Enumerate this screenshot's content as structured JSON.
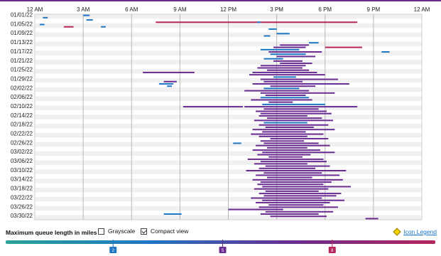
{
  "chart_data": {
    "type": "heatmap",
    "x_axis": {
      "tick_labels": [
        "12 AM",
        "3 AM",
        "6 AM",
        "9 AM",
        "12 PM",
        "3 PM",
        "6 PM",
        "9 PM",
        "12 AM"
      ],
      "range_hours": [
        0,
        24
      ]
    },
    "y_axis": {
      "dates": [
        "01/01/22",
        "01/05/22",
        "01/09/22",
        "01/13/22",
        "01/17/22",
        "01/21/22",
        "01/25/22",
        "01/29/22",
        "02/02/22",
        "02/06/22",
        "02/10/22",
        "02/14/22",
        "02/18/22",
        "02/22/22",
        "02/26/22",
        "03/02/22",
        "03/06/22",
        "03/10/22",
        "03/14/22",
        "03/18/22",
        "03/22/22",
        "03/26/22",
        "03/30/22"
      ],
      "range": [
        "01/01/22",
        "03/31/22"
      ]
    },
    "grid": true,
    "scale": {
      "tick_values": [
        "2",
        "5",
        "8"
      ],
      "colors": [
        "#2aa198",
        "#1f77c4",
        "#6a2c91",
        "#b5255c"
      ]
    },
    "bars": [
      {
        "date": "01/01/22",
        "start": 3.0,
        "end": 3.4,
        "level": 1
      },
      {
        "date": "01/02/22",
        "start": 0.5,
        "end": 0.8,
        "level": 1
      },
      {
        "date": "01/03/22",
        "start": 3.2,
        "end": 3.6,
        "level": 1
      },
      {
        "date": "01/04/22",
        "start": 7.5,
        "end": 20.0,
        "level": 3
      },
      {
        "date": "01/04/22",
        "start": 13.8,
        "end": 14.0,
        "level": 1
      },
      {
        "date": "01/05/22",
        "start": 0.3,
        "end": 0.6,
        "level": 1
      },
      {
        "date": "01/06/22",
        "start": 1.8,
        "end": 2.4,
        "level": 3
      },
      {
        "date": "01/06/22",
        "start": 4.1,
        "end": 4.4,
        "level": 1
      },
      {
        "date": "01/07/22",
        "start": 14.5,
        "end": 15.0,
        "level": 1
      },
      {
        "date": "01/09/22",
        "start": 15.0,
        "end": 15.8,
        "level": 1
      },
      {
        "date": "01/10/22",
        "start": 14.2,
        "end": 14.6,
        "level": 1
      },
      {
        "date": "01/13/22",
        "start": 17.0,
        "end": 17.6,
        "level": 1
      },
      {
        "date": "01/14/22",
        "start": 15.2,
        "end": 17.0,
        "level": 2
      },
      {
        "date": "01/15/22",
        "start": 18.0,
        "end": 20.3,
        "level": 3
      },
      {
        "date": "01/15/22",
        "start": 14.8,
        "end": 16.8,
        "level": 2
      },
      {
        "date": "01/16/22",
        "start": 14.0,
        "end": 16.4,
        "level": 1
      },
      {
        "date": "01/17/22",
        "start": 14.5,
        "end": 17.8,
        "level": 2
      },
      {
        "date": "01/17/22",
        "start": 21.5,
        "end": 22.0,
        "level": 1
      },
      {
        "date": "01/18/22",
        "start": 14.6,
        "end": 16.8,
        "level": 1
      },
      {
        "date": "01/19/22",
        "start": 15.0,
        "end": 17.4,
        "level": 2
      },
      {
        "date": "01/20/22",
        "start": 14.2,
        "end": 15.4,
        "level": 1
      },
      {
        "date": "01/21/22",
        "start": 14.8,
        "end": 16.6,
        "level": 2
      },
      {
        "date": "01/22/22",
        "start": 15.2,
        "end": 17.2,
        "level": 2
      },
      {
        "date": "01/23/22",
        "start": 14.0,
        "end": 16.8,
        "level": 2
      },
      {
        "date": "01/24/22",
        "start": 13.8,
        "end": 16.6,
        "level": 2
      },
      {
        "date": "01/25/22",
        "start": 14.4,
        "end": 17.0,
        "level": 2
      },
      {
        "date": "01/26/22",
        "start": 6.7,
        "end": 9.9,
        "level": 2
      },
      {
        "date": "01/26/22",
        "start": 13.5,
        "end": 17.5,
        "level": 2
      },
      {
        "date": "01/27/22",
        "start": 13.3,
        "end": 18.0,
        "level": 2
      },
      {
        "date": "01/28/22",
        "start": 14.8,
        "end": 16.2,
        "level": 1
      },
      {
        "date": "01/29/22",
        "start": 14.0,
        "end": 18.8,
        "level": 2
      },
      {
        "date": "01/30/22",
        "start": 8.0,
        "end": 8.8,
        "level": 2
      },
      {
        "date": "01/30/22",
        "start": 14.2,
        "end": 16.6,
        "level": 2
      },
      {
        "date": "01/31/22",
        "start": 7.7,
        "end": 8.6,
        "level": 1
      },
      {
        "date": "01/31/22",
        "start": 13.5,
        "end": 19.5,
        "level": 2
      },
      {
        "date": "02/01/22",
        "start": 8.2,
        "end": 8.5,
        "level": 1
      },
      {
        "date": "02/01/22",
        "start": 14.6,
        "end": 17.4,
        "level": 2
      },
      {
        "date": "02/02/22",
        "start": 14.2,
        "end": 16.4,
        "level": 1
      },
      {
        "date": "02/03/22",
        "start": 13.0,
        "end": 17.0,
        "level": 2
      },
      {
        "date": "02/04/22",
        "start": 14.0,
        "end": 18.6,
        "level": 2
      },
      {
        "date": "02/05/22",
        "start": 14.3,
        "end": 16.8,
        "level": 2
      },
      {
        "date": "02/06/22",
        "start": 14.0,
        "end": 17.0,
        "level": 1
      },
      {
        "date": "02/07/22",
        "start": 13.4,
        "end": 17.2,
        "level": 2
      },
      {
        "date": "02/08/22",
        "start": 14.5,
        "end": 16.0,
        "level": 2
      },
      {
        "date": "02/09/22",
        "start": 14.1,
        "end": 18.0,
        "level": 1
      },
      {
        "date": "02/10/22",
        "start": 9.2,
        "end": 12.9,
        "level": 2
      },
      {
        "date": "02/10/22",
        "start": 13.0,
        "end": 20.0,
        "level": 2
      },
      {
        "date": "02/11/22",
        "start": 14.2,
        "end": 17.6,
        "level": 2
      },
      {
        "date": "02/12/22",
        "start": 13.7,
        "end": 18.1,
        "level": 2
      },
      {
        "date": "02/13/22",
        "start": 14.0,
        "end": 18.4,
        "level": 2
      },
      {
        "date": "02/14/22",
        "start": 13.9,
        "end": 16.9,
        "level": 2
      },
      {
        "date": "02/15/22",
        "start": 14.4,
        "end": 17.8,
        "level": 2
      },
      {
        "date": "02/16/22",
        "start": 13.6,
        "end": 18.5,
        "level": 2
      },
      {
        "date": "02/17/22",
        "start": 14.2,
        "end": 16.9,
        "level": 1
      },
      {
        "date": "02/18/22",
        "start": 13.9,
        "end": 18.2,
        "level": 2
      },
      {
        "date": "02/19/22",
        "start": 14.3,
        "end": 17.3,
        "level": 2
      },
      {
        "date": "02/20/22",
        "start": 13.5,
        "end": 18.6,
        "level": 2
      },
      {
        "date": "02/21/22",
        "start": 14.1,
        "end": 16.8,
        "level": 2
      },
      {
        "date": "02/22/22",
        "start": 13.4,
        "end": 17.9,
        "level": 2
      },
      {
        "date": "02/23/22",
        "start": 13.9,
        "end": 16.9,
        "level": 2
      },
      {
        "date": "02/24/22",
        "start": 14.6,
        "end": 18.2,
        "level": 2
      },
      {
        "date": "02/25/22",
        "start": 14.0,
        "end": 16.7,
        "level": 2
      },
      {
        "date": "02/26/22",
        "start": 12.3,
        "end": 12.8,
        "level": 1
      },
      {
        "date": "02/26/22",
        "start": 14.2,
        "end": 17.6,
        "level": 2
      },
      {
        "date": "02/27/22",
        "start": 13.7,
        "end": 18.3,
        "level": 2
      },
      {
        "date": "02/28/22",
        "start": 14.4,
        "end": 16.9,
        "level": 2
      },
      {
        "date": "03/01/22",
        "start": 13.5,
        "end": 17.7,
        "level": 2
      },
      {
        "date": "03/02/22",
        "start": 14.1,
        "end": 18.6,
        "level": 2
      },
      {
        "date": "03/03/22",
        "start": 13.8,
        "end": 17.1,
        "level": 2
      },
      {
        "date": "03/04/22",
        "start": 14.5,
        "end": 16.6,
        "level": 2
      },
      {
        "date": "03/05/22",
        "start": 13.2,
        "end": 17.9,
        "level": 2
      },
      {
        "date": "03/06/22",
        "start": 14.0,
        "end": 18.1,
        "level": 2
      },
      {
        "date": "03/07/22",
        "start": 13.6,
        "end": 16.9,
        "level": 2
      },
      {
        "date": "03/08/22",
        "start": 14.3,
        "end": 18.3,
        "level": 2
      },
      {
        "date": "03/09/22",
        "start": 13.9,
        "end": 17.4,
        "level": 2
      },
      {
        "date": "03/10/22",
        "start": 13.1,
        "end": 19.3,
        "level": 2
      },
      {
        "date": "03/11/22",
        "start": 14.2,
        "end": 17.8,
        "level": 2
      },
      {
        "date": "03/12/22",
        "start": 13.7,
        "end": 18.9,
        "level": 2
      },
      {
        "date": "03/13/22",
        "start": 14.4,
        "end": 17.2,
        "level": 2
      },
      {
        "date": "03/14/22",
        "start": 13.5,
        "end": 19.1,
        "level": 2
      },
      {
        "date": "03/15/22",
        "start": 14.0,
        "end": 18.4,
        "level": 2
      },
      {
        "date": "03/16/22",
        "start": 13.8,
        "end": 17.9,
        "level": 2
      },
      {
        "date": "03/17/22",
        "start": 14.1,
        "end": 19.6,
        "level": 2
      },
      {
        "date": "03/18/22",
        "start": 13.6,
        "end": 18.2,
        "level": 2
      },
      {
        "date": "03/19/22",
        "start": 14.3,
        "end": 17.6,
        "level": 2
      },
      {
        "date": "03/20/22",
        "start": 13.9,
        "end": 19.0,
        "level": 2
      },
      {
        "date": "03/21/22",
        "start": 14.2,
        "end": 18.7,
        "level": 2
      },
      {
        "date": "03/22/22",
        "start": 13.4,
        "end": 17.8,
        "level": 2
      },
      {
        "date": "03/23/22",
        "start": 14.1,
        "end": 19.2,
        "level": 2
      },
      {
        "date": "03/24/22",
        "start": 13.7,
        "end": 18.3,
        "level": 2
      },
      {
        "date": "03/25/22",
        "start": 14.5,
        "end": 17.9,
        "level": 2
      },
      {
        "date": "03/26/22",
        "start": 13.9,
        "end": 18.8,
        "level": 2
      },
      {
        "date": "03/27/22",
        "start": 12.0,
        "end": 15.4,
        "level": 2
      },
      {
        "date": "03/28/22",
        "start": 14.3,
        "end": 18.5,
        "level": 2
      },
      {
        "date": "03/29/22",
        "start": 8.0,
        "end": 9.1,
        "level": 1
      },
      {
        "date": "03/29/22",
        "start": 14.0,
        "end": 17.6,
        "level": 2
      },
      {
        "date": "03/30/22",
        "start": 14.6,
        "end": 18.1,
        "level": 2
      },
      {
        "date": "03/31/22",
        "start": 20.5,
        "end": 21.3,
        "level": 2
      }
    ]
  },
  "controls": {
    "queue_label": "Maximum queue length in miles",
    "grayscale_label": "Grayscale",
    "grayscale_checked": false,
    "compact_label": "Compact view",
    "compact_checked": true,
    "legend_link": "Icon Legend"
  }
}
